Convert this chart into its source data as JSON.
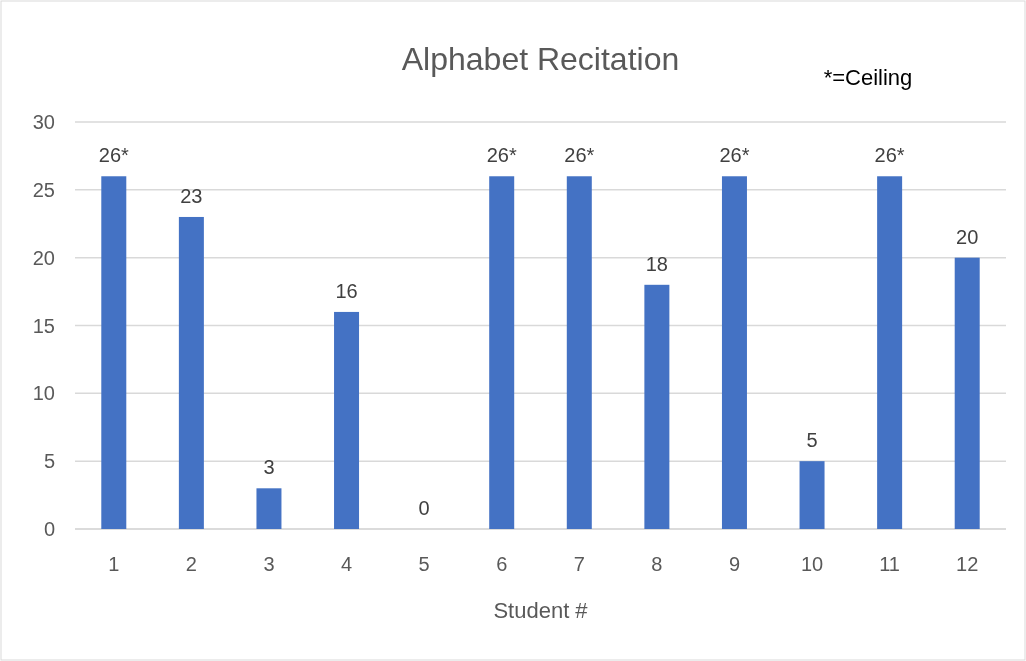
{
  "chart_data": {
    "type": "bar",
    "title": "Alphabet Recitation",
    "xlabel": "Student #",
    "categories": [
      "1",
      "2",
      "3",
      "4",
      "5",
      "6",
      "7",
      "8",
      "9",
      "10",
      "11",
      "12"
    ],
    "values": [
      26,
      23,
      3,
      16,
      0,
      26,
      26,
      18,
      26,
      5,
      26,
      20
    ],
    "value_labels": [
      "26*",
      "23",
      "3",
      "16",
      "0",
      "26*",
      "26*",
      "18",
      "26*",
      "5",
      "26*",
      "20"
    ],
    "color": "#4472c4",
    "ylim": [
      0,
      30
    ],
    "yticks": [
      0,
      5,
      10,
      15,
      20,
      25,
      30
    ],
    "grid": "y",
    "annotations": [
      "*=Ceiling"
    ]
  }
}
